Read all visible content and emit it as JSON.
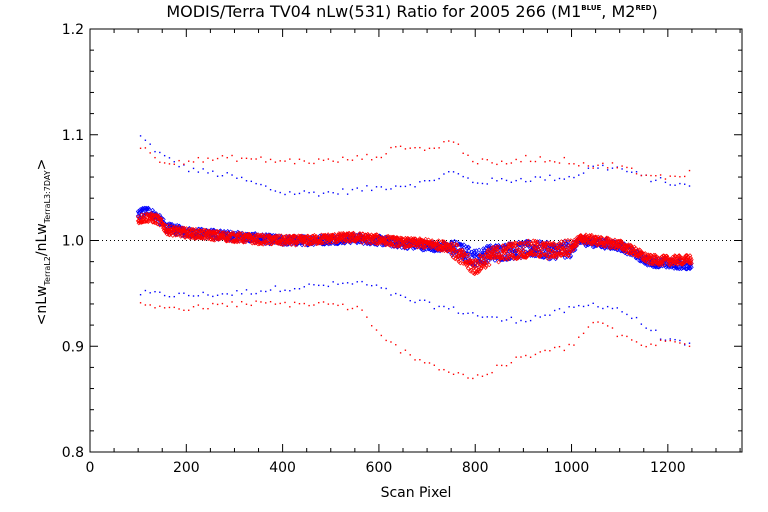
{
  "chart_data": {
    "type": "scatter",
    "title": {
      "main": "MODIS/Terra TV04 nLw(531) Ratio for 2005 266 (M1",
      "sup1": "BLUE",
      "mid": ", M2",
      "sup2": "RED",
      "end": ")"
    },
    "xlabel": "Scan Pixel",
    "ylabel": {
      "open": "<nLw",
      "sub1": "TerraL2",
      "mid": "/nLw",
      "sub2": "TerraL3:7DAY",
      "close": ">"
    },
    "xlim": [
      0,
      1354
    ],
    "ylim": [
      0.8,
      1.2
    ],
    "x_ticks": [
      0,
      200,
      400,
      600,
      800,
      1000,
      1200
    ],
    "x_tick_labels": [
      "0",
      "200",
      "400",
      "600",
      "800",
      "1000",
      "1200"
    ],
    "y_ticks": [
      0.8,
      0.9,
      1.0,
      1.1,
      1.2
    ],
    "y_tick_labels": [
      "0.8",
      "0.9",
      "1.0",
      "1.1",
      "1.2"
    ],
    "reference_line": {
      "y": 1.0,
      "style": "dotted"
    },
    "series": [
      {
        "color": "#0000ff",
        "mean": [
          [
            100,
            1.025
          ],
          [
            120,
            1.028
          ],
          [
            140,
            1.022
          ],
          [
            160,
            1.012
          ],
          [
            200,
            1.008
          ],
          [
            250,
            1.006
          ],
          [
            300,
            1.004
          ],
          [
            350,
            1.002
          ],
          [
            400,
            1.0
          ],
          [
            450,
            1.0
          ],
          [
            500,
            1.001
          ],
          [
            550,
            1.002
          ],
          [
            600,
            1.0
          ],
          [
            650,
            0.997
          ],
          [
            700,
            0.995
          ],
          [
            750,
            0.993
          ],
          [
            780,
            0.988
          ],
          [
            800,
            0.983
          ],
          [
            830,
            0.988
          ],
          [
            870,
            0.99
          ],
          [
            920,
            0.992
          ],
          [
            960,
            0.99
          ],
          [
            1000,
            0.992
          ],
          [
            1020,
            1.0
          ],
          [
            1050,
            0.998
          ],
          [
            1100,
            0.995
          ],
          [
            1130,
            0.988
          ],
          [
            1160,
            0.98
          ],
          [
            1200,
            0.978
          ],
          [
            1250,
            0.977
          ]
        ],
        "upper": [
          [
            100,
            1.1
          ],
          [
            150,
            1.08
          ],
          [
            200,
            1.068
          ],
          [
            300,
            1.06
          ],
          [
            400,
            1.045
          ],
          [
            500,
            1.045
          ],
          [
            600,
            1.05
          ],
          [
            700,
            1.055
          ],
          [
            750,
            1.065
          ],
          [
            800,
            1.055
          ],
          [
            900,
            1.058
          ],
          [
            1000,
            1.06
          ],
          [
            1050,
            1.07
          ],
          [
            1100,
            1.068
          ],
          [
            1150,
            1.06
          ],
          [
            1200,
            1.055
          ],
          [
            1250,
            1.05
          ]
        ],
        "lower": [
          [
            100,
            0.95
          ],
          [
            200,
            0.948
          ],
          [
            300,
            0.95
          ],
          [
            400,
            0.955
          ],
          [
            500,
            0.958
          ],
          [
            560,
            0.96
          ],
          [
            600,
            0.955
          ],
          [
            650,
            0.945
          ],
          [
            700,
            0.94
          ],
          [
            750,
            0.935
          ],
          [
            800,
            0.93
          ],
          [
            850,
            0.925
          ],
          [
            900,
            0.925
          ],
          [
            950,
            0.93
          ],
          [
            1000,
            0.935
          ],
          [
            1050,
            0.94
          ],
          [
            1100,
            0.935
          ],
          [
            1150,
            0.92
          ],
          [
            1200,
            0.905
          ],
          [
            1250,
            0.9
          ]
        ]
      },
      {
        "color": "#ff0000",
        "mean": [
          [
            100,
            1.02
          ],
          [
            120,
            1.022
          ],
          [
            140,
            1.02
          ],
          [
            160,
            1.01
          ],
          [
            200,
            1.007
          ],
          [
            250,
            1.005
          ],
          [
            300,
            1.003
          ],
          [
            350,
            1.001
          ],
          [
            400,
            1.0
          ],
          [
            450,
            1.0
          ],
          [
            500,
            1.002
          ],
          [
            550,
            1.003
          ],
          [
            600,
            1.001
          ],
          [
            650,
            0.998
          ],
          [
            700,
            0.997
          ],
          [
            750,
            0.994
          ],
          [
            780,
            0.98
          ],
          [
            800,
            0.975
          ],
          [
            830,
            0.985
          ],
          [
            870,
            0.99
          ],
          [
            920,
            0.992
          ],
          [
            960,
            0.99
          ],
          [
            1000,
            0.994
          ],
          [
            1020,
            1.002
          ],
          [
            1050,
            1.0
          ],
          [
            1100,
            0.996
          ],
          [
            1130,
            0.99
          ],
          [
            1160,
            0.982
          ],
          [
            1200,
            0.981
          ],
          [
            1250,
            0.982
          ]
        ],
        "upper": [
          [
            100,
            1.09
          ],
          [
            150,
            1.075
          ],
          [
            200,
            1.075
          ],
          [
            300,
            1.078
          ],
          [
            400,
            1.075
          ],
          [
            500,
            1.075
          ],
          [
            600,
            1.08
          ],
          [
            650,
            1.09
          ],
          [
            700,
            1.085
          ],
          [
            750,
            1.095
          ],
          [
            800,
            1.075
          ],
          [
            850,
            1.072
          ],
          [
            900,
            1.078
          ],
          [
            1000,
            1.075
          ],
          [
            1050,
            1.07
          ],
          [
            1100,
            1.072
          ],
          [
            1150,
            1.06
          ],
          [
            1200,
            1.06
          ],
          [
            1250,
            1.065
          ]
        ],
        "lower": [
          [
            100,
            0.94
          ],
          [
            200,
            0.935
          ],
          [
            300,
            0.94
          ],
          [
            400,
            0.94
          ],
          [
            500,
            0.94
          ],
          [
            560,
            0.935
          ],
          [
            600,
            0.91
          ],
          [
            650,
            0.895
          ],
          [
            700,
            0.885
          ],
          [
            750,
            0.875
          ],
          [
            800,
            0.87
          ],
          [
            850,
            0.88
          ],
          [
            900,
            0.89
          ],
          [
            950,
            0.895
          ],
          [
            1000,
            0.9
          ],
          [
            1050,
            0.925
          ],
          [
            1100,
            0.91
          ],
          [
            1150,
            0.9
          ],
          [
            1200,
            0.905
          ],
          [
            1250,
            0.9
          ]
        ]
      }
    ]
  }
}
